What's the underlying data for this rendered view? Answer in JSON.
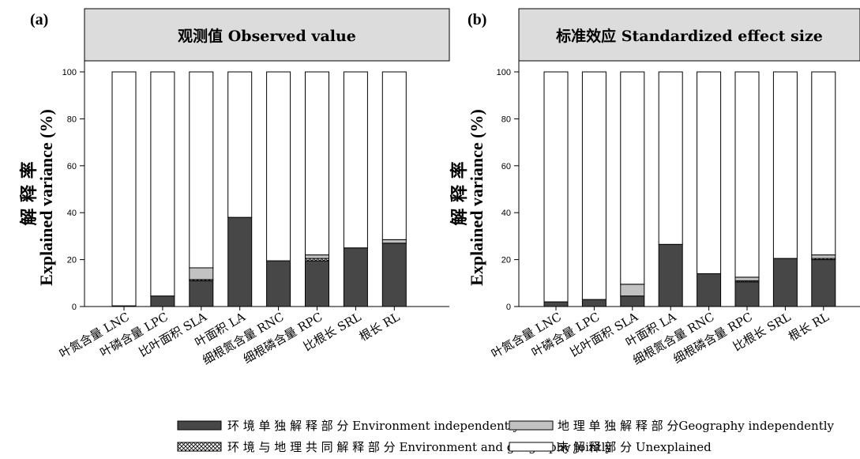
{
  "colors": {
    "environment": "#474747",
    "geography": "#c2c2c2",
    "joint": "#ffffff",
    "unexplained": "#ffffff",
    "header_bg": "#dcdcdc"
  },
  "legend": {
    "environment": "环 境 单 独 解 释 部 分 Environment independently",
    "geography": "地 理 单 独 解 释 部 分Geography independently",
    "joint": "环 境 与 地 理 共 同 解 释 部 分 Environment and geography jointly",
    "unexplained": "未 解 释 部 分 Unexplained"
  },
  "chart_data": [
    {
      "type": "bar",
      "stacked": true,
      "panel": "(a)",
      "title": "观测值 Observed value",
      "ylabel_cn": "解 释 率",
      "ylabel": "Explained variance (%)",
      "ylim": [
        0,
        100
      ],
      "yticks": [
        "0",
        "20",
        "40",
        "60",
        "80",
        "100"
      ],
      "categories": [
        "叶氮含量 LNC",
        "叶磷含量 LPC",
        "比叶面积 SLA",
        "叶面积 LA",
        "细根氮含量 RNC",
        "细根磷含量 RPC",
        "比根长 SRL",
        "根长 RL"
      ],
      "series": [
        {
          "name": "环 境 单 独 解 释 部 分 Environment independently",
          "values": [
            0,
            4.5,
            11,
            38,
            19.5,
            19.5,
            25,
            27
          ]
        },
        {
          "name": "环 境 与 地 理 共 同 解 释 部 分 Environment and geography jointly",
          "values": [
            0,
            0,
            0.5,
            0,
            0,
            1,
            0,
            0
          ]
        },
        {
          "name": "地 理 单 独 解 释 部 分Geography independently",
          "values": [
            0.3,
            0,
            5,
            0,
            0,
            1.5,
            0,
            1.5
          ]
        },
        {
          "name": "未 解 释 部 分 Unexplained",
          "values": [
            99.7,
            95.5,
            83.5,
            62,
            80.5,
            78,
            75,
            71.5
          ]
        }
      ]
    },
    {
      "type": "bar",
      "stacked": true,
      "panel": "(b)",
      "title": "标准效应 Standardized effect size",
      "ylabel_cn": "解 释 率",
      "ylabel": "Explained variance (%)",
      "ylim": [
        0,
        100
      ],
      "yticks": [
        "0",
        "20",
        "40",
        "60",
        "80",
        "100"
      ],
      "categories": [
        "叶氮含量 LNC",
        "叶磷含量 LPC",
        "比叶面积 SLA",
        "叶面积 LA",
        "细根氮含量 RNC",
        "细根磷含量 RPC",
        "比根长 SRL",
        "根长 RL"
      ],
      "series": [
        {
          "name": "环 境 单 独 解 释 部 分 Environment independently",
          "values": [
            2,
            3,
            4.5,
            26.5,
            14,
            10.5,
            20.5,
            20
          ]
        },
        {
          "name": "环 境 与 地 理 共 同 解 释 部 分 Environment and geography jointly",
          "values": [
            0,
            0,
            0,
            0,
            0,
            0.5,
            0,
            0.5
          ]
        },
        {
          "name": "地 理 单 独 解 释 部 分Geography independently",
          "values": [
            0,
            0,
            5,
            0,
            0,
            1.5,
            0,
            1.5
          ]
        },
        {
          "name": "未 解 释 部 分 Unexplained",
          "values": [
            98,
            97,
            90.5,
            73.5,
            86,
            87.5,
            79.5,
            78
          ]
        }
      ]
    }
  ]
}
